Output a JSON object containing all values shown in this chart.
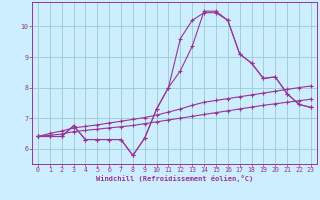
{
  "bg_color": "#cceeff",
  "line_color": "#993399",
  "grid_color": "#99cccc",
  "xlabel": "Windchill (Refroidissement éolien,°C)",
  "tick_color": "#993399",
  "xlim": [
    -0.5,
    23.5
  ],
  "ylim": [
    5.5,
    10.8
  ],
  "yticks": [
    6,
    7,
    8,
    9,
    10
  ],
  "xticks": [
    0,
    1,
    2,
    3,
    4,
    5,
    6,
    7,
    8,
    9,
    10,
    11,
    12,
    13,
    14,
    15,
    16,
    17,
    18,
    19,
    20,
    21,
    22,
    23
  ],
  "lines": [
    {
      "x": [
        0,
        1,
        2,
        3,
        4,
        5,
        6,
        7,
        8,
        9,
        10,
        11,
        12,
        13,
        14,
        15,
        16,
        17,
        18,
        19,
        20,
        21,
        22,
        23
      ],
      "y": [
        6.4,
        6.4,
        6.4,
        6.75,
        6.3,
        6.3,
        6.3,
        6.3,
        5.78,
        6.35,
        7.3,
        8.0,
        9.6,
        10.2,
        10.45,
        10.45,
        10.2,
        9.1,
        8.8,
        8.3,
        8.35,
        7.8,
        7.45,
        7.35
      ]
    },
    {
      "x": [
        0,
        1,
        2,
        3,
        4,
        5,
        6,
        7,
        8,
        9,
        10,
        11,
        12,
        13,
        14,
        15,
        16,
        17,
        18,
        19,
        20,
        21,
        22,
        23
      ],
      "y": [
        6.4,
        6.4,
        6.4,
        6.75,
        6.3,
        6.3,
        6.3,
        6.3,
        5.78,
        6.35,
        7.3,
        8.0,
        8.55,
        9.35,
        10.5,
        10.5,
        10.2,
        9.1,
        8.8,
        8.3,
        8.35,
        7.8,
        7.45,
        7.35
      ]
    },
    {
      "x": [
        0,
        1,
        2,
        3,
        4,
        5,
        6,
        7,
        8,
        9,
        10,
        11,
        12,
        13,
        14,
        15,
        16,
        17,
        18,
        19,
        20,
        21,
        22,
        23
      ],
      "y": [
        6.4,
        6.5,
        6.58,
        6.68,
        6.73,
        6.78,
        6.84,
        6.9,
        6.96,
        7.02,
        7.1,
        7.2,
        7.3,
        7.42,
        7.52,
        7.58,
        7.64,
        7.7,
        7.76,
        7.82,
        7.88,
        7.94,
        8.0,
        8.05
      ]
    },
    {
      "x": [
        0,
        1,
        2,
        3,
        4,
        5,
        6,
        7,
        8,
        9,
        10,
        11,
        12,
        13,
        14,
        15,
        16,
        17,
        18,
        19,
        20,
        21,
        22,
        23
      ],
      "y": [
        6.4,
        6.44,
        6.48,
        6.56,
        6.6,
        6.64,
        6.68,
        6.72,
        6.76,
        6.82,
        6.88,
        6.94,
        7.0,
        7.06,
        7.12,
        7.18,
        7.24,
        7.3,
        7.36,
        7.42,
        7.47,
        7.52,
        7.57,
        7.62
      ]
    }
  ]
}
